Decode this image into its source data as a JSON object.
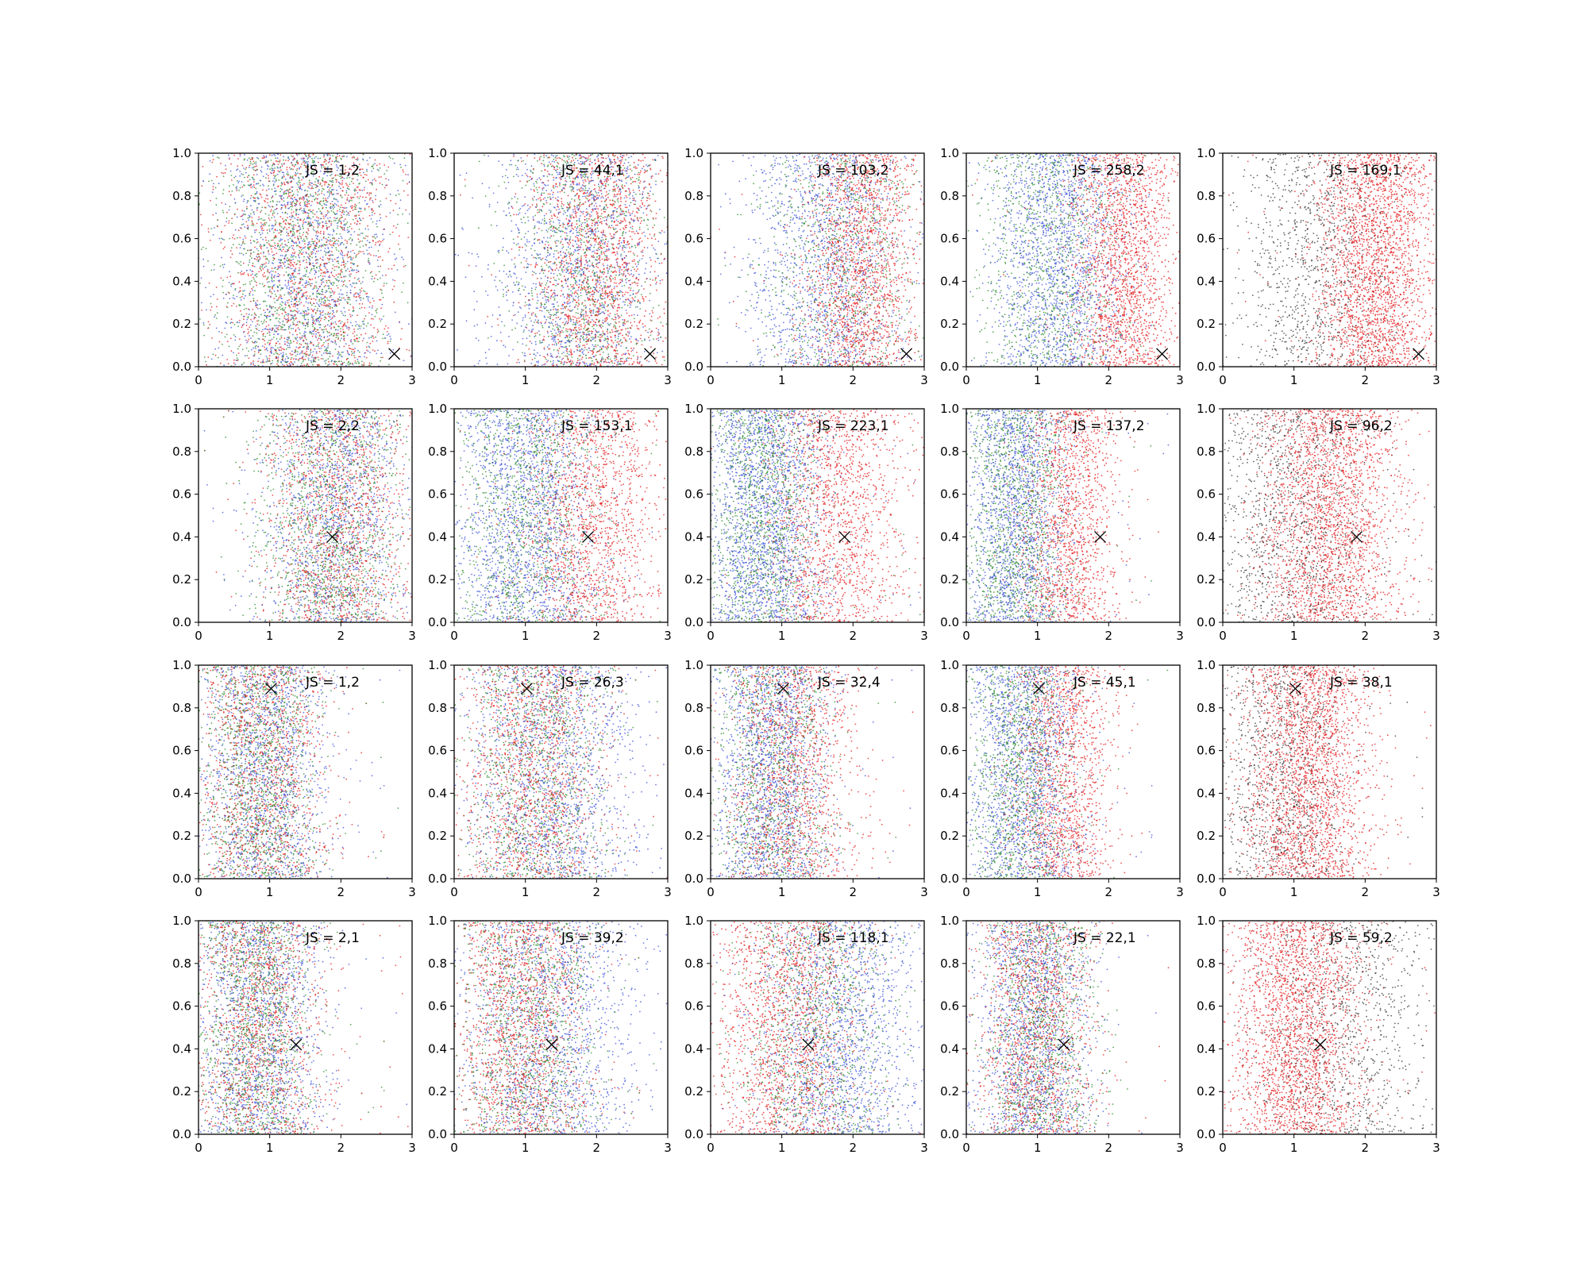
{
  "chart_data": {
    "type": "scatter",
    "layout": {
      "rows": 4,
      "cols": 5
    },
    "xlim": [
      0,
      3
    ],
    "ylim": [
      0,
      1
    ],
    "xticks": [
      "0",
      "1",
      "2",
      "3"
    ],
    "yticks": [
      "0.0",
      "0.2",
      "0.4",
      "0.6",
      "0.8",
      "1.0"
    ],
    "grid": false,
    "colors": {
      "red": "#e41a1c",
      "blue": "#3b50d8",
      "green": "#2a8a2a",
      "black": "#333333",
      "marker": "#000000"
    },
    "rows": [
      {
        "marker": {
          "x": 2.75,
          "y": 0.06
        },
        "panels": [
          {
            "label": "JS = 1,2",
            "series": [
              {
                "color": "red",
                "count": 1400,
                "x_mean": 1.5,
                "x_sd": 0.65,
                "x_range": [
                  0.0,
                  3.0
                ]
              },
              {
                "color": "blue",
                "count": 1300,
                "x_mean": 1.5,
                "x_sd": 0.6,
                "x_range": [
                  0.0,
                  3.0
                ]
              },
              {
                "color": "green",
                "count": 1300,
                "x_mean": 1.45,
                "x_sd": 0.6,
                "x_range": [
                  0.0,
                  3.0
                ]
              }
            ]
          },
          {
            "label": "JS = 44,1",
            "series": [
              {
                "color": "red",
                "count": 1600,
                "x_mean": 2.0,
                "x_sd": 0.45,
                "x_range": [
                  0.0,
                  3.0
                ]
              },
              {
                "color": "blue",
                "count": 1300,
                "x_mean": 1.7,
                "x_sd": 0.6,
                "x_range": [
                  0.0,
                  3.0
                ]
              },
              {
                "color": "green",
                "count": 900,
                "x_mean": 1.8,
                "x_sd": 0.5,
                "x_range": [
                  0.0,
                  3.0
                ]
              }
            ]
          },
          {
            "label": "JS = 103,2",
            "series": [
              {
                "color": "red",
                "count": 1700,
                "x_mean": 2.1,
                "x_sd": 0.4,
                "x_range": [
                  0.0,
                  3.0
                ]
              },
              {
                "color": "blue",
                "count": 1400,
                "x_mean": 1.6,
                "x_sd": 0.55,
                "x_range": [
                  0.0,
                  3.0
                ]
              },
              {
                "color": "green",
                "count": 800,
                "x_mean": 1.8,
                "x_sd": 0.55,
                "x_range": [
                  0.0,
                  3.0
                ]
              }
            ]
          },
          {
            "label": "JS = 258,2",
            "series": [
              {
                "color": "red",
                "count": 1800,
                "x_mean": 2.2,
                "x_sd": 0.35,
                "x_range": [
                  0.0,
                  3.0
                ]
              },
              {
                "color": "blue",
                "count": 1700,
                "x_mean": 1.3,
                "x_sd": 0.45,
                "x_range": [
                  0.0,
                  3.0
                ]
              },
              {
                "color": "green",
                "count": 1000,
                "x_mean": 1.2,
                "x_sd": 0.5,
                "x_range": [
                  0.0,
                  3.0
                ]
              }
            ]
          },
          {
            "label": "JS = 169,1",
            "series": [
              {
                "color": "red",
                "count": 2400,
                "x_mean": 2.15,
                "x_sd": 0.4,
                "x_range": [
                  0.0,
                  3.0
                ]
              },
              {
                "color": "black",
                "count": 1000,
                "x_mean": 1.3,
                "x_sd": 0.55,
                "x_range": [
                  0.0,
                  3.0
                ]
              }
            ]
          }
        ]
      },
      {
        "marker": {
          "x": 1.88,
          "y": 0.4
        },
        "panels": [
          {
            "label": "JS = 2,2",
            "series": [
              {
                "color": "red",
                "count": 1400,
                "x_mean": 1.95,
                "x_sd": 0.5,
                "x_range": [
                  0.0,
                  3.0
                ]
              },
              {
                "color": "blue",
                "count": 1300,
                "x_mean": 1.9,
                "x_sd": 0.5,
                "x_range": [
                  0.0,
                  3.0
                ]
              },
              {
                "color": "green",
                "count": 1300,
                "x_mean": 1.85,
                "x_sd": 0.5,
                "x_range": [
                  0.0,
                  3.0
                ]
              }
            ]
          },
          {
            "label": "JS = 153,1",
            "series": [
              {
                "color": "red",
                "count": 1500,
                "x_mean": 1.9,
                "x_sd": 0.5,
                "x_range": [
                  0.0,
                  3.0
                ]
              },
              {
                "color": "blue",
                "count": 1700,
                "x_mean": 1.0,
                "x_sd": 0.5,
                "x_range": [
                  0.0,
                  3.0
                ]
              },
              {
                "color": "green",
                "count": 1100,
                "x_mean": 1.0,
                "x_sd": 0.5,
                "x_range": [
                  0.0,
                  3.0
                ]
              }
            ]
          },
          {
            "label": "JS = 223,1",
            "series": [
              {
                "color": "red",
                "count": 1500,
                "x_mean": 1.75,
                "x_sd": 0.5,
                "x_range": [
                  0.0,
                  3.0
                ]
              },
              {
                "color": "blue",
                "count": 1900,
                "x_mean": 0.75,
                "x_sd": 0.4,
                "x_range": [
                  0.0,
                  3.0
                ]
              },
              {
                "color": "green",
                "count": 1200,
                "x_mean": 0.75,
                "x_sd": 0.4,
                "x_range": [
                  0.0,
                  3.0
                ]
              }
            ]
          },
          {
            "label": "JS = 137,2",
            "series": [
              {
                "color": "red",
                "count": 1400,
                "x_mean": 1.45,
                "x_sd": 0.35,
                "x_range": [
                  0.0,
                  3.0
                ]
              },
              {
                "color": "blue",
                "count": 1600,
                "x_mean": 0.7,
                "x_sd": 0.35,
                "x_range": [
                  0.0,
                  3.0
                ]
              },
              {
                "color": "green",
                "count": 1200,
                "x_mean": 0.7,
                "x_sd": 0.35,
                "x_range": [
                  0.0,
                  3.0
                ]
              }
            ]
          },
          {
            "label": "JS = 96,2",
            "series": [
              {
                "color": "red",
                "count": 2300,
                "x_mean": 1.5,
                "x_sd": 0.5,
                "x_range": [
                  0.0,
                  3.0
                ]
              },
              {
                "color": "black",
                "count": 1100,
                "x_mean": 0.9,
                "x_sd": 0.6,
                "x_range": [
                  0.0,
                  3.0
                ]
              }
            ]
          }
        ]
      },
      {
        "marker": {
          "x": 1.02,
          "y": 0.89
        },
        "panels": [
          {
            "label": "JS = 1,2",
            "series": [
              {
                "color": "red",
                "count": 1300,
                "x_mean": 0.9,
                "x_sd": 0.45,
                "x_range": [
                  0.0,
                  3.0
                ]
              },
              {
                "color": "blue",
                "count": 1400,
                "x_mean": 0.95,
                "x_sd": 0.45,
                "x_range": [
                  0.0,
                  3.0
                ]
              },
              {
                "color": "green",
                "count": 1300,
                "x_mean": 0.85,
                "x_sd": 0.4,
                "x_range": [
                  0.0,
                  3.0
                ]
              }
            ]
          },
          {
            "label": "JS = 26,3",
            "series": [
              {
                "color": "red",
                "count": 1400,
                "x_mean": 1.1,
                "x_sd": 0.5,
                "x_range": [
                  0.0,
                  3.0
                ]
              },
              {
                "color": "blue",
                "count": 1500,
                "x_mean": 1.4,
                "x_sd": 0.6,
                "x_range": [
                  0.0,
                  3.0
                ]
              },
              {
                "color": "green",
                "count": 1100,
                "x_mean": 1.2,
                "x_sd": 0.5,
                "x_range": [
                  0.0,
                  3.0
                ]
              }
            ]
          },
          {
            "label": "JS = 32,4",
            "series": [
              {
                "color": "red",
                "count": 1400,
                "x_mean": 1.15,
                "x_sd": 0.45,
                "x_range": [
                  0.0,
                  3.0
                ]
              },
              {
                "color": "blue",
                "count": 1600,
                "x_mean": 0.85,
                "x_sd": 0.4,
                "x_range": [
                  0.0,
                  3.0
                ]
              },
              {
                "color": "green",
                "count": 1000,
                "x_mean": 0.85,
                "x_sd": 0.4,
                "x_range": [
                  0.0,
                  3.0
                ]
              }
            ]
          },
          {
            "label": "JS = 45,1",
            "series": [
              {
                "color": "red",
                "count": 1400,
                "x_mean": 1.35,
                "x_sd": 0.35,
                "x_range": [
                  0.0,
                  3.0
                ]
              },
              {
                "color": "blue",
                "count": 1600,
                "x_mean": 0.8,
                "x_sd": 0.4,
                "x_range": [
                  0.0,
                  3.0
                ]
              },
              {
                "color": "green",
                "count": 1100,
                "x_mean": 0.75,
                "x_sd": 0.35,
                "x_range": [
                  0.0,
                  3.0
                ]
              }
            ]
          },
          {
            "label": "JS = 38,1",
            "series": [
              {
                "color": "red",
                "count": 2300,
                "x_mean": 1.2,
                "x_sd": 0.45,
                "x_range": [
                  0.0,
                  3.0
                ]
              },
              {
                "color": "black",
                "count": 1000,
                "x_mean": 0.8,
                "x_sd": 0.45,
                "x_range": [
                  0.0,
                  3.0
                ]
              }
            ]
          }
        ]
      },
      {
        "marker": {
          "x": 1.37,
          "y": 0.42
        },
        "panels": [
          {
            "label": "JS = 2,1",
            "series": [
              {
                "color": "red",
                "count": 1300,
                "x_mean": 0.85,
                "x_sd": 0.45,
                "x_range": [
                  0.0,
                  3.0
                ]
              },
              {
                "color": "blue",
                "count": 1400,
                "x_mean": 0.85,
                "x_sd": 0.45,
                "x_range": [
                  0.0,
                  3.0
                ]
              },
              {
                "color": "green",
                "count": 1300,
                "x_mean": 0.8,
                "x_sd": 0.4,
                "x_range": [
                  0.0,
                  3.0
                ]
              }
            ]
          },
          {
            "label": "JS = 39,2",
            "series": [
              {
                "color": "red",
                "count": 1500,
                "x_mean": 0.95,
                "x_sd": 0.45,
                "x_range": [
                  0.0,
                  3.0
                ]
              },
              {
                "color": "blue",
                "count": 1500,
                "x_mean": 1.35,
                "x_sd": 0.6,
                "x_range": [
                  0.0,
                  3.0
                ]
              },
              {
                "color": "green",
                "count": 1100,
                "x_mean": 1.05,
                "x_sd": 0.5,
                "x_range": [
                  0.0,
                  3.0
                ]
              }
            ]
          },
          {
            "label": "JS = 118,1",
            "series": [
              {
                "color": "red",
                "count": 1600,
                "x_mean": 1.05,
                "x_sd": 0.5,
                "x_range": [
                  0.0,
                  3.0
                ]
              },
              {
                "color": "blue",
                "count": 1600,
                "x_mean": 1.8,
                "x_sd": 0.55,
                "x_range": [
                  0.0,
                  3.0
                ]
              },
              {
                "color": "green",
                "count": 1000,
                "x_mean": 1.5,
                "x_sd": 0.55,
                "x_range": [
                  0.0,
                  3.0
                ]
              }
            ]
          },
          {
            "label": "JS = 22,1",
            "series": [
              {
                "color": "red",
                "count": 1400,
                "x_mean": 1.0,
                "x_sd": 0.4,
                "x_range": [
                  0.0,
                  3.0
                ]
              },
              {
                "color": "blue",
                "count": 1500,
                "x_mean": 0.95,
                "x_sd": 0.4,
                "x_range": [
                  0.0,
                  3.0
                ]
              },
              {
                "color": "green",
                "count": 1100,
                "x_mean": 1.05,
                "x_sd": 0.4,
                "x_range": [
                  0.0,
                  3.0
                ]
              }
            ]
          },
          {
            "label": "JS = 59,2",
            "series": [
              {
                "color": "red",
                "count": 2300,
                "x_mean": 1.05,
                "x_sd": 0.45,
                "x_range": [
                  0.0,
                  3.0
                ]
              },
              {
                "color": "black",
                "count": 1000,
                "x_mean": 1.7,
                "x_sd": 0.6,
                "x_range": [
                  0.0,
                  3.0
                ]
              }
            ]
          }
        ]
      }
    ]
  }
}
